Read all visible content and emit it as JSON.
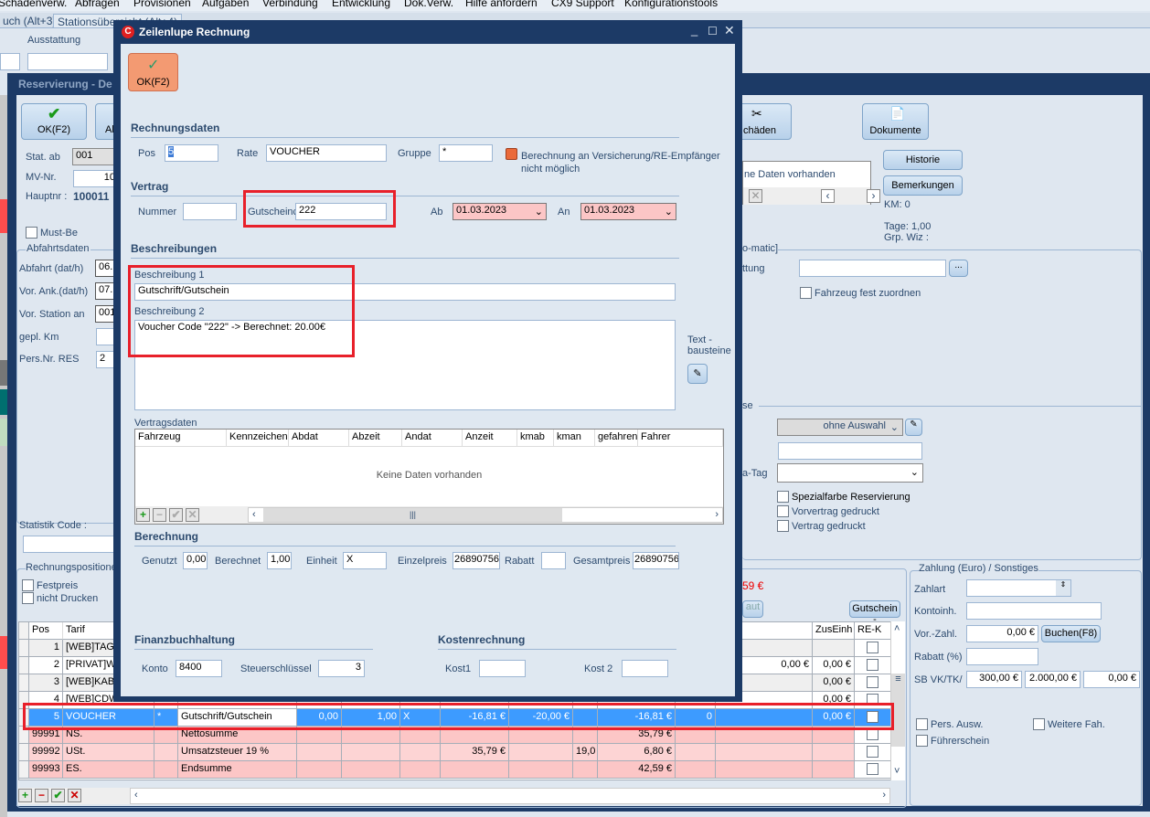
{
  "menu": [
    "Schadenverw.",
    "Abfragen",
    "Provisionen",
    "Aufgaben",
    "Verbindung",
    "Entwicklung",
    "Dok.Verw.",
    "Hilfe anfordern",
    "CX9 Support",
    "Konfigurationstools"
  ],
  "tabs": [
    "uch (Alt+3)",
    "Stationsübersicht (Alt+4)"
  ],
  "back": {
    "ausstattung": "Ausstattung"
  },
  "res": {
    "title": "Reservierung - De",
    "ok": "OK(F2)",
    "ab": "Ab",
    "schaeden": "chäden",
    "dokumente": "Dokumente",
    "stat_ab": "Stat. ab",
    "stat_ab_val": "001",
    "mv_nr": "MV-Nr.",
    "mv_nr_val": "10",
    "hauptnr": "Hauptnr :",
    "hauptnr_val": "100011",
    "must_be": "Must-Be",
    "abfahrtsdaten": "Abfahrtsdaten",
    "abfahrt": "Abfahrt (dat/h)",
    "abfahrt_val": "06.",
    "vor_ank": "Vor. Ank.(dat/h)",
    "vor_ank_val": "07.",
    "vor_station": "Vor. Station an",
    "vor_station_val": "001",
    "gepl_km": "gepl. Km",
    "pers_nr": "Pers.Nr. RES",
    "pers_nr_val": "2",
    "statistik": "Statistik Code :",
    "keine_daten": "ne Daten vorhanden",
    "historie": "Historie",
    "bemerkungen": "Bemerkungen",
    "km": "KM: 0",
    "tage": "Tage: 1,00",
    "grp": "Grp. Wiz :",
    "omatic": "o-matic]",
    "ttung": "ttung",
    "dots": "...",
    "fahrzeug_fest": "Fahrzeug fest zuordnen",
    "se": "se",
    "ohne_auswahl": "ohne Auswahl",
    "a_tag": "a-Tag",
    "spezialfarbe": "Spezialfarbe Reservierung",
    "vorvertrag": "Vorvertrag gedruckt",
    "vertrag": "Vertrag gedruckt",
    "rechnungspos": "Rechnungspositione",
    "festpreis": "Festpreis",
    "nicht_drucken": "nicht Drucken",
    "total_red": "59 €",
    "aut": "aut",
    "gutschein_btn": "Gutschein -",
    "zahlung": {
      "title": "Zahlung (Euro) / Sonstiges",
      "zahlart": "Zahlart",
      "kontoinh": "Kontoinh.",
      "vorzahl": "Vor.-Zahl.",
      "vorzahl_val": "0,00 €",
      "buchen": "Buchen(F8)",
      "rabatt": "Rabatt (%)",
      "sb": "SB VK/TK/",
      "sb1": "300,00 €",
      "sb2": "2.000,00 €",
      "sb3": "0,00 €",
      "pers_ausw": "Pers. Ausw.",
      "weitere": "Weitere Fah.",
      "fuehrerschein": "Führerschein"
    }
  },
  "grid": {
    "headers": [
      "Pos",
      "Tarif",
      "",
      "",
      "",
      "",
      "",
      "",
      "",
      "",
      "",
      "",
      "M",
      "ZusEinh",
      "RE-K"
    ],
    "rows": [
      {
        "cells": [
          "1",
          "[WEB]TAG",
          "",
          "",
          "",
          "",
          "",
          "",
          "",
          "",
          "",
          "",
          "",
          "",
          ""
        ],
        "style": "gray"
      },
      {
        "cells": [
          "2",
          "[PRIVAT]W",
          "",
          "",
          "",
          "",
          "",
          "",
          "",
          "",
          "",
          "",
          "0,00 €",
          "0,00 €",
          ""
        ],
        "style": "white"
      },
      {
        "cells": [
          "3",
          "[WEB]KAB",
          "",
          "",
          "",
          "",
          "",
          "",
          "",
          "",
          "",
          "",
          "",
          "0,00 €",
          ""
        ],
        "style": "gray"
      },
      {
        "cells": [
          "4",
          "[WEB]CDW",
          "",
          "",
          "",
          "",
          "",
          "",
          "",
          "",
          "",
          "",
          "",
          "0,00 €",
          ""
        ],
        "style": "white"
      },
      {
        "cells": [
          "5",
          "VOUCHER",
          "*",
          "Gutschrift/Gutschein",
          "0,00",
          "1,00",
          "X",
          "-16,81 €",
          "-20,00 €",
          "",
          "-16,81 €",
          "0",
          "",
          "0,00 €",
          ""
        ],
        "style": "sel"
      },
      {
        "cells": [
          "99991",
          "NS.",
          "",
          "Nettosumme",
          "",
          "",
          "",
          "",
          "",
          "",
          "35,79 €",
          "",
          "",
          "",
          ""
        ],
        "style": "pink"
      },
      {
        "cells": [
          "99992",
          "USt.",
          "",
          "Umsatzsteuer  19 %",
          "",
          "",
          "",
          "35,79 €",
          "",
          "19,0",
          "6,80 €",
          "",
          "",
          "",
          ""
        ],
        "style": "pink2"
      },
      {
        "cells": [
          "99993",
          "ES.",
          "",
          "Endsumme",
          "",
          "",
          "",
          "",
          "",
          "",
          "42,59 €",
          "",
          "",
          "",
          ""
        ],
        "style": "pink"
      }
    ]
  },
  "dialog": {
    "title": "Zeilenlupe Rechnung",
    "ok": "OK(F2)",
    "rechnungsdaten": "Rechnungsdaten",
    "pos": "Pos",
    "pos_val": "5",
    "rate": "Rate",
    "rate_val": "VOUCHER",
    "gruppe": "Gruppe",
    "gruppe_val": "*",
    "berechnung_note": "Berechnung an Versicherung/RE-Empfänger nicht möglich",
    "vertrag": "Vertrag",
    "nummer": "Nummer",
    "nummer_val": "",
    "gutschein": "Gutscheinc",
    "gutschein_val": "222",
    "ab": "Ab",
    "ab_val": "01.03.2023",
    "an": "An",
    "an_val": "01.03.2023",
    "beschreibungen": "Beschreibungen",
    "beschr1": "Beschreibung 1",
    "beschr1_val": "Gutschrift/Gutschein",
    "beschr2": "Beschreibung 2",
    "beschr2_val": "Voucher Code \"222\" -> Berechnet: 20.00€",
    "textbausteine": "Text - bausteine",
    "vertragsdaten": "Vertragsdaten",
    "vd_cols": [
      "Fahrzeug",
      "Kennzeichen",
      "Abdat",
      "Abzeit",
      "Andat",
      "Anzeit",
      "kmab",
      "kman",
      "gefahren",
      "Fahrer"
    ],
    "vd_empty": "Keine Daten vorhanden",
    "berechnung": "Berechnung",
    "genutzt": "Genutzt",
    "genutzt_val": "0,00",
    "berechnet": "Berechnet",
    "berechnet_val": "1,00",
    "einheit": "Einheit",
    "einheit_val": "X",
    "einzelpreis": "Einzelpreis",
    "einzelpreis_val": "26890756",
    "rabatt": "Rabatt",
    "rabatt_val": "",
    "gesamtpreis": "Gesamtpreis",
    "gesamtpreis_val": "26890756",
    "fibu": "Finanzbuchhaltung",
    "konto": "Konto",
    "konto_val": "8400",
    "steuer": "Steuerschlüssel",
    "steuer_val": "3",
    "kostenrechnung": "Kostenrechnung",
    "kost1": "Kost1",
    "kost2": "Kost 2"
  },
  "colors": {
    "titlebar": "#1c3a66",
    "selected_row": "#3d9bff",
    "highlight": "#e8202a",
    "ok_button": "#f39a72",
    "pink": "#fcc6c6"
  }
}
